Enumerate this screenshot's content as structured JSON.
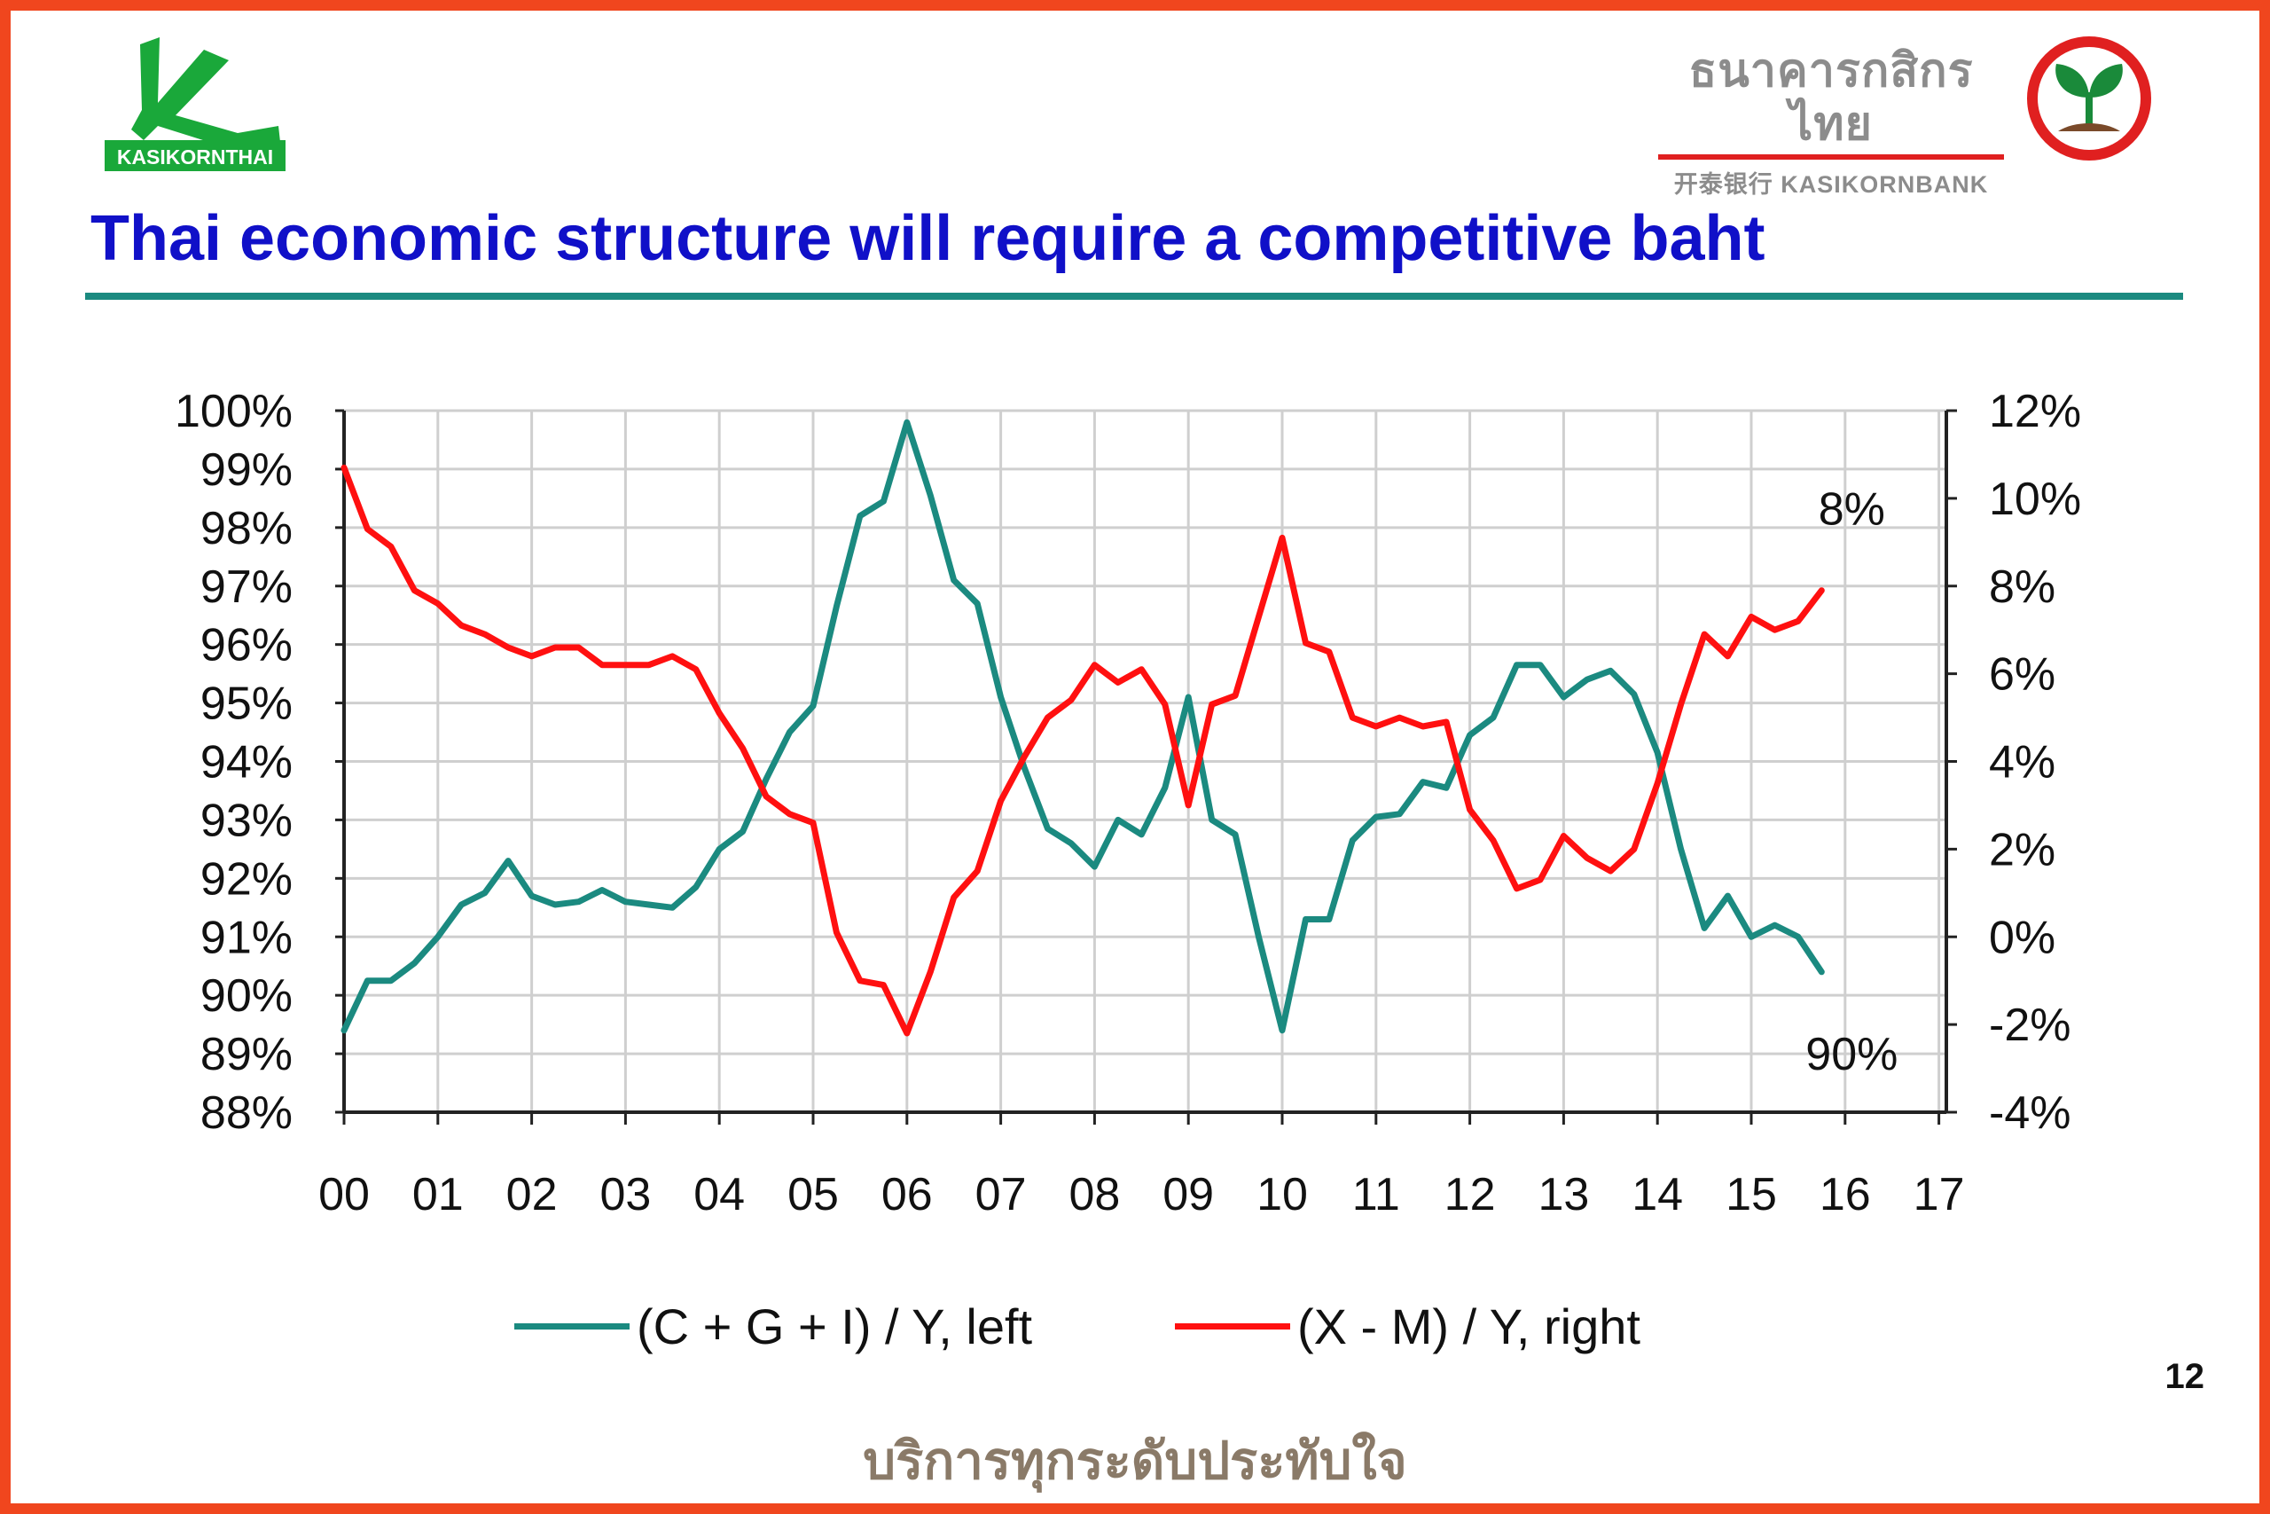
{
  "header": {
    "logo_left_text": "KASIKORNTHAI",
    "bank_name_thai": "ธนาคารกสิกรไทย",
    "bank_name_english": "开泰银行 KASIKORNBANK",
    "title": "Thai economic structure will require a competitive baht"
  },
  "footer": {
    "page_number": "12",
    "slogan": "บริการทุกระดับประทับใจ"
  },
  "colors": {
    "frame": "#f0461e",
    "title": "#1010c8",
    "rule": "#1b8a80",
    "teal_series": "#1b8a80",
    "red_series": "#ff1010"
  },
  "chart_data": {
    "type": "line",
    "x_categories": [
      "00",
      "01",
      "02",
      "03",
      "04",
      "05",
      "06",
      "07",
      "08",
      "09",
      "10",
      "11",
      "12",
      "13",
      "14",
      "15",
      "16",
      "17"
    ],
    "x_range": [
      2000,
      2017
    ],
    "y_left": {
      "ticks": [
        "100%",
        "99%",
        "98%",
        "97%",
        "96%",
        "95%",
        "94%",
        "93%",
        "92%",
        "91%",
        "90%",
        "89%",
        "88%"
      ],
      "range": [
        88,
        100
      ]
    },
    "y_right": {
      "ticks": [
        "12%",
        "10%",
        "8%",
        "6%",
        "4%",
        "2%",
        "0%",
        "-2%",
        "-4%"
      ],
      "range": [
        -4,
        12
      ]
    },
    "grid": true,
    "legend_position": "bottom",
    "annotations": [
      {
        "text": "8%",
        "near_series": "(X - M) / Y, right"
      },
      {
        "text": "90%",
        "near_series": "(C + G + I) / Y, left"
      }
    ],
    "series": [
      {
        "name": "(C + G + I) / Y, left",
        "axis": "left",
        "color": "#1b8a80",
        "x": [
          2000.0,
          2000.25,
          2000.5,
          2000.75,
          2001.0,
          2001.25,
          2001.5,
          2001.75,
          2002.0,
          2002.25,
          2002.5,
          2002.75,
          2003.0,
          2003.25,
          2003.5,
          2003.75,
          2004.0,
          2004.25,
          2004.5,
          2004.75,
          2005.0,
          2005.25,
          2005.5,
          2005.75,
          2006.0,
          2006.25,
          2006.5,
          2006.75,
          2007.0,
          2007.25,
          2007.5,
          2007.75,
          2008.0,
          2008.25,
          2008.5,
          2008.75,
          2009.0,
          2009.25,
          2009.5,
          2009.75,
          2010.0,
          2010.25,
          2010.5,
          2010.75,
          2011.0,
          2011.25,
          2011.5,
          2011.75,
          2012.0,
          2012.25,
          2012.5,
          2012.75,
          2013.0,
          2013.25,
          2013.5,
          2013.75,
          2014.0,
          2014.25,
          2014.5,
          2014.75,
          2015.0,
          2015.25,
          2015.5,
          2015.75
        ],
        "values": [
          89.4,
          90.25,
          90.25,
          90.55,
          91.0,
          91.55,
          91.75,
          92.3,
          91.7,
          91.55,
          91.6,
          91.8,
          91.6,
          91.55,
          91.5,
          91.85,
          92.5,
          92.8,
          93.7,
          94.5,
          94.95,
          96.65,
          98.2,
          98.45,
          99.8,
          98.55,
          97.1,
          96.7,
          95.1,
          93.9,
          92.85,
          92.6,
          92.2,
          93.0,
          92.75,
          93.55,
          95.1,
          93.0,
          92.75,
          91.0,
          89.4,
          91.3,
          91.3,
          92.65,
          93.05,
          93.1,
          93.65,
          93.55,
          94.45,
          94.75,
          95.65,
          95.65,
          95.1,
          95.4,
          95.55,
          95.15,
          94.15,
          92.5,
          91.15,
          91.7,
          91.0,
          91.2,
          91.0,
          90.4
        ]
      },
      {
        "name": "(X - M) / Y, right",
        "axis": "right",
        "color": "#ff1010",
        "x": [
          2000.0,
          2000.25,
          2000.5,
          2000.75,
          2001.0,
          2001.25,
          2001.5,
          2001.75,
          2002.0,
          2002.25,
          2002.5,
          2002.75,
          2003.0,
          2003.25,
          2003.5,
          2003.75,
          2004.0,
          2004.25,
          2004.5,
          2004.75,
          2005.0,
          2005.25,
          2005.5,
          2005.75,
          2006.0,
          2006.25,
          2006.5,
          2006.75,
          2007.0,
          2007.25,
          2007.5,
          2007.75,
          2008.0,
          2008.25,
          2008.5,
          2008.75,
          2009.0,
          2009.25,
          2009.5,
          2009.75,
          2010.0,
          2010.25,
          2010.5,
          2010.75,
          2011.0,
          2011.25,
          2011.5,
          2011.75,
          2012.0,
          2012.25,
          2012.5,
          2012.75,
          2013.0,
          2013.25,
          2013.5,
          2013.75,
          2014.0,
          2014.25,
          2014.5,
          2014.75,
          2015.0,
          2015.25,
          2015.5,
          2015.75
        ],
        "values": [
          10.7,
          9.3,
          8.9,
          7.9,
          7.6,
          7.1,
          6.9,
          6.6,
          6.4,
          6.6,
          6.6,
          6.2,
          6.2,
          6.2,
          6.4,
          6.1,
          5.1,
          4.3,
          3.2,
          2.8,
          2.6,
          0.1,
          -1.0,
          -1.1,
          -2.2,
          -0.8,
          0.9,
          1.5,
          3.1,
          4.1,
          5.0,
          5.4,
          6.2,
          5.8,
          6.1,
          5.3,
          3.0,
          5.3,
          5.5,
          7.3,
          9.1,
          6.7,
          6.5,
          5.0,
          4.8,
          5.0,
          4.8,
          4.9,
          2.9,
          2.2,
          1.1,
          1.3,
          2.3,
          1.8,
          1.5,
          2.0,
          3.5,
          5.3,
          6.9,
          6.4,
          7.3,
          7.0,
          7.2,
          7.9
        ]
      }
    ]
  }
}
